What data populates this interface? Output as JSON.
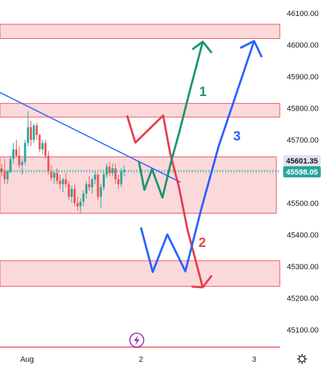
{
  "chart_data": {
    "type": "candlestick",
    "price_axis": {
      "range": [
        45040,
        46130
      ],
      "ticks": [
        46100,
        46000,
        45900,
        45800,
        45700,
        45600,
        45500,
        45400,
        45300,
        45200,
        45100
      ],
      "tick_labels": [
        "46100.00",
        "46000.00",
        "45900.00",
        "45800.00",
        "45700.00",
        "45600.00",
        "45500.00",
        "45400.00",
        "45300.00",
        "45200.00",
        "45100.00"
      ]
    },
    "time_axis": {
      "labels": [
        "Aug",
        "2",
        "3"
      ]
    },
    "price_tags": [
      {
        "text": "45601.35",
        "role": "marker",
        "color": "#131722",
        "bg": "#e0e3eb"
      },
      {
        "text": "45598.05",
        "role": "last-price",
        "color": "#ffffff",
        "bg": "#26a69a"
      }
    ],
    "zones": [
      {
        "low": 46020,
        "high": 46065
      },
      {
        "low": 45772,
        "high": 45815
      },
      {
        "low": 45468,
        "high": 45646
      },
      {
        "low": 45237,
        "high": 45318
      }
    ],
    "scenario_labels": [
      {
        "text": "1",
        "color": "#1a9577"
      },
      {
        "text": "2",
        "color": "#e63e4f"
      },
      {
        "text": "3",
        "color": "#2962ff"
      }
    ],
    "colors": {
      "up": "#26a69a",
      "down": "#ef5350",
      "zone_fill": "#fbd9db",
      "zone_border": "#e8505b",
      "trendline": "#2962ff",
      "price_line": "#26a69a"
    }
  },
  "ui": {
    "settings_icon": "gear-icon",
    "lightning_icon": "lightning-icon"
  }
}
